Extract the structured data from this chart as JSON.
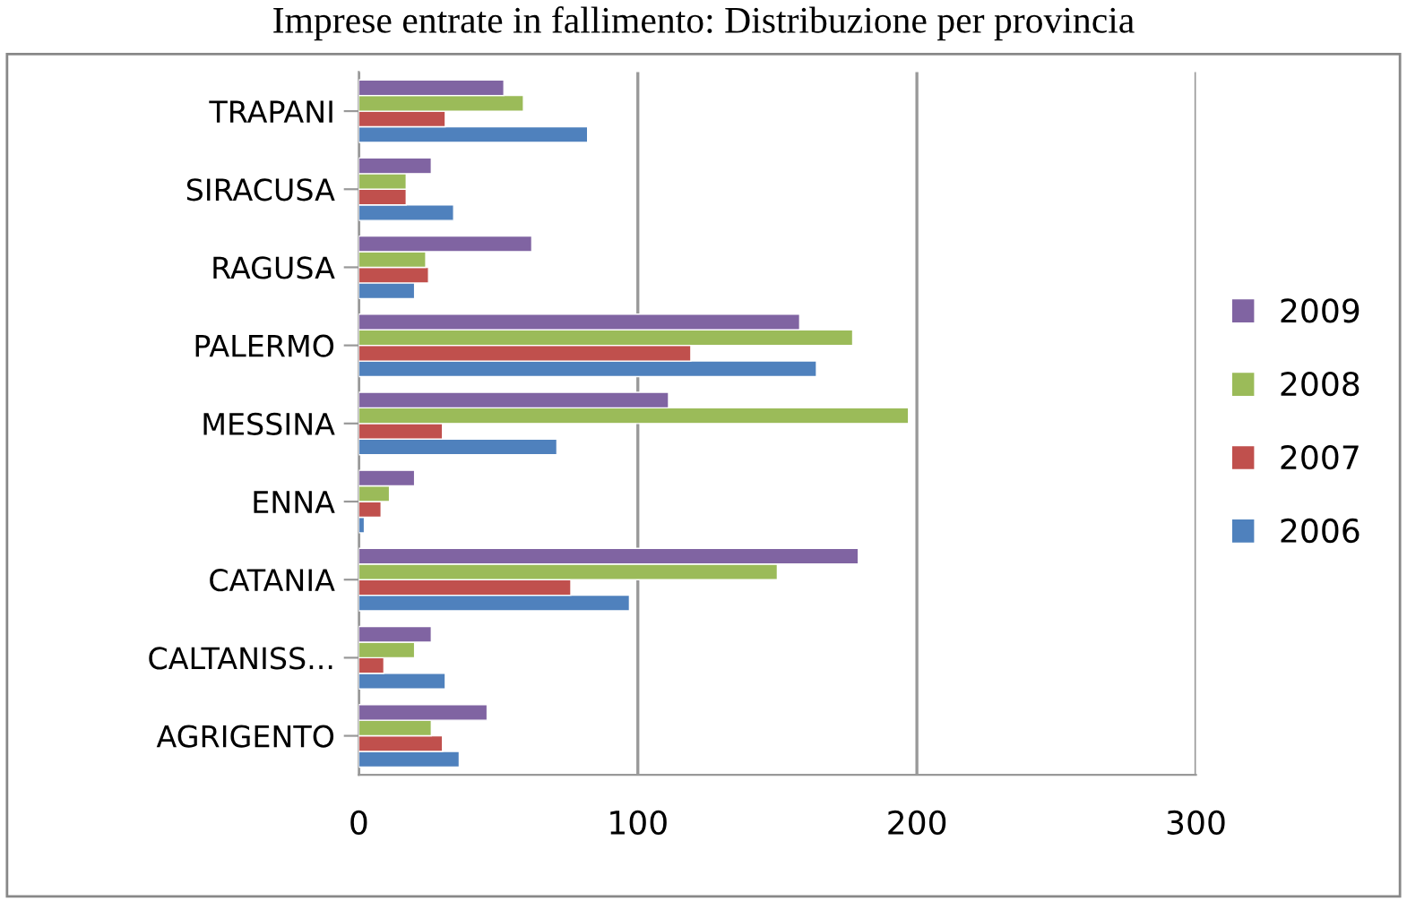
{
  "chart_data": {
    "type": "bar",
    "orientation": "horizontal",
    "title": "Imprese entrate in fallimento: Distribuzione per provincia",
    "categories": [
      "TRAPANI",
      "SIRACUSA",
      "RAGUSA",
      "PALERMO",
      "MESSINA",
      "ENNA",
      "CATANIA",
      "CALTANISS...",
      "AGRIGENTO"
    ],
    "series": [
      {
        "name": "2006",
        "color": "#4f81bd",
        "values": [
          82,
          34,
          20,
          164,
          71,
          2,
          97,
          31,
          36
        ]
      },
      {
        "name": "2007",
        "color": "#c0504d",
        "values": [
          31,
          17,
          25,
          119,
          30,
          8,
          76,
          9,
          30
        ]
      },
      {
        "name": "2008",
        "color": "#9bbb59",
        "values": [
          59,
          17,
          24,
          177,
          197,
          11,
          150,
          20,
          26
        ]
      },
      {
        "name": "2009",
        "color": "#8064a2",
        "values": [
          52,
          26,
          62,
          158,
          111,
          20,
          179,
          26,
          46
        ]
      }
    ],
    "xlim": [
      0,
      300
    ],
    "xticks": [
      0,
      100,
      200,
      300
    ],
    "grid": "x",
    "legend": "right"
  }
}
